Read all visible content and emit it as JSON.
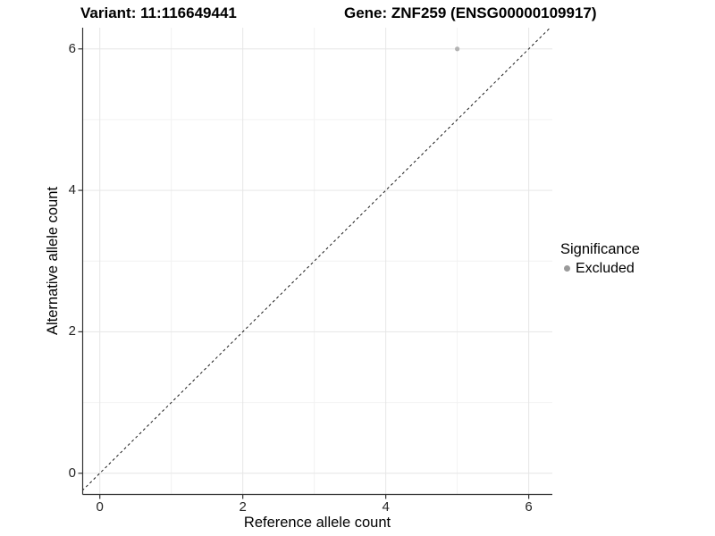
{
  "header": {
    "variant_title": "Variant: 11:116649441",
    "gene_title": "Gene: ZNF259 (ENSG00000109917)"
  },
  "chart_data": {
    "type": "scatter",
    "title_left": "Variant: 11:116649441",
    "title_right": "Gene: ZNF259 (ENSG00000109917)",
    "xlabel": "Reference allele count",
    "ylabel": "Alternative allele count",
    "xlim": [
      -0.24,
      6.33
    ],
    "ylim": [
      -0.3,
      6.3
    ],
    "x_ticks": [
      0,
      2,
      4,
      6
    ],
    "y_ticks": [
      0,
      2,
      4,
      6
    ],
    "x_minor_ticks": [
      1,
      3,
      5
    ],
    "y_minor_ticks": [
      1,
      3,
      5
    ],
    "grid": true,
    "points": [
      {
        "x": 5,
        "y": 6,
        "series": "Excluded"
      }
    ],
    "reference_line": {
      "description": "identity line y = x",
      "style": "dashed",
      "color": "#1a1a1a"
    },
    "legend": {
      "title": "Significance",
      "position": "right",
      "items": [
        {
          "label": "Excluded",
          "color": "#9a9a9a"
        }
      ]
    },
    "colors": {
      "point": "#b3b3b3",
      "axis_line": "#333333",
      "tick_mark": "#333333",
      "major_grid": "#e6e6e6",
      "minor_grid": "#f2f2f2",
      "background": "#ffffff"
    }
  }
}
